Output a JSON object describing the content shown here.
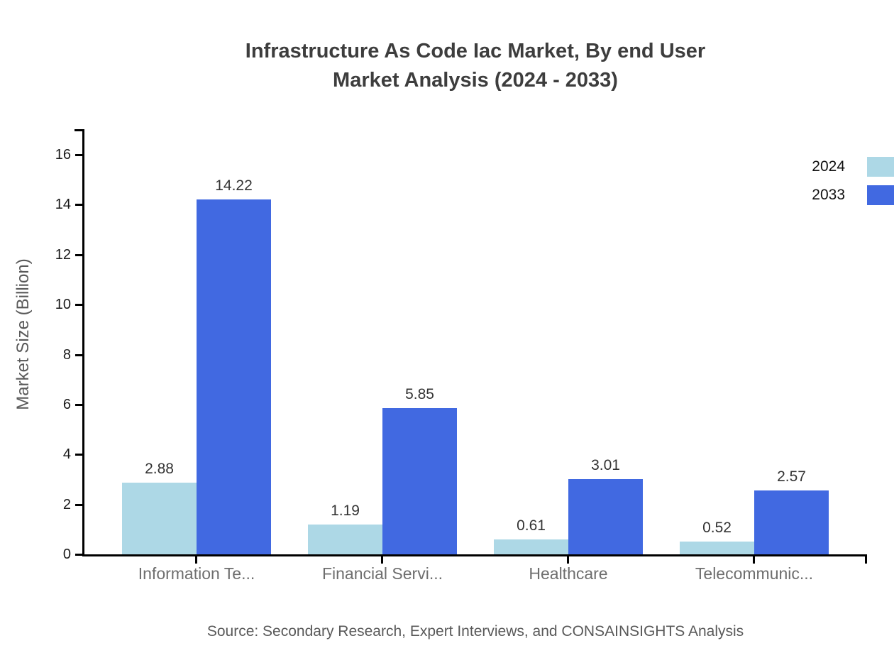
{
  "title": {
    "line1": "Infrastructure As Code Iac Market, By end User",
    "line2": "Market Analysis (2024 - 2033)"
  },
  "source": "Source: Secondary Research, Expert Interviews, and CONSAINSIGHTS Analysis",
  "chart_data": {
    "type": "bar",
    "title": "Infrastructure As Code Iac Market, By end User Market Analysis (2024 - 2033)",
    "xlabel": "",
    "ylabel": "Market Size (Billion)",
    "categories": [
      "Information Te...",
      "Financial Servi...",
      "Healthcare",
      "Telecommunic..."
    ],
    "series": [
      {
        "name": "2024",
        "color": "#ADD8E6",
        "values": [
          2.88,
          1.19,
          0.61,
          0.52
        ]
      },
      {
        "name": "2033",
        "color": "#4169E1",
        "values": [
          14.22,
          5.85,
          3.01,
          2.57
        ]
      }
    ],
    "ylim": [
      0,
      17
    ],
    "yticks": [
      0,
      2,
      4,
      6,
      8,
      10,
      12,
      14,
      16
    ],
    "grid": false,
    "legend_position": "top-right",
    "value_labels": true,
    "value_label_decimals": 2
  }
}
